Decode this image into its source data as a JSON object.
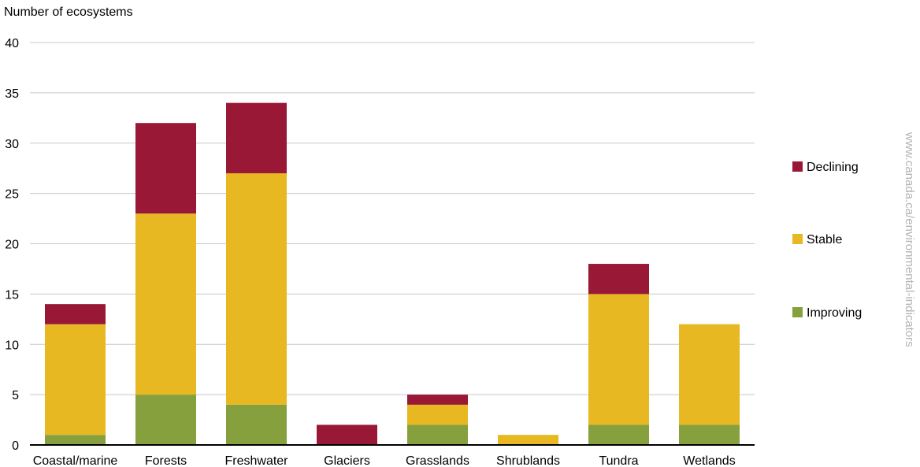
{
  "chart_data": {
    "type": "bar",
    "stacked": true,
    "ylabel": "Number of ecosystems",
    "xlabel": "",
    "ylim": [
      0,
      40
    ],
    "yticks": [
      0,
      5,
      10,
      15,
      20,
      25,
      30,
      35,
      40
    ],
    "grid": true,
    "legend_position": "right",
    "categories": [
      "Coastal/marine",
      "Forests",
      "Freshwater",
      "Glaciers",
      "Grasslands",
      "Shrublands",
      "Tundra",
      "Wetlands"
    ],
    "series": [
      {
        "name": "Improving",
        "color": "#86a03e",
        "values": [
          1,
          5,
          4,
          0,
          2,
          0,
          2,
          2
        ]
      },
      {
        "name": "Stable",
        "color": "#e8b822",
        "values": [
          11,
          18,
          23,
          0,
          2,
          1,
          13,
          10
        ]
      },
      {
        "name": "Declining",
        "color": "#981836",
        "values": [
          2,
          9,
          7,
          2,
          1,
          0,
          3,
          0
        ]
      }
    ],
    "legend_order": [
      "Declining",
      "Stable",
      "Improving"
    ]
  },
  "source_text": "www.canada.ca/environmental-indicators"
}
